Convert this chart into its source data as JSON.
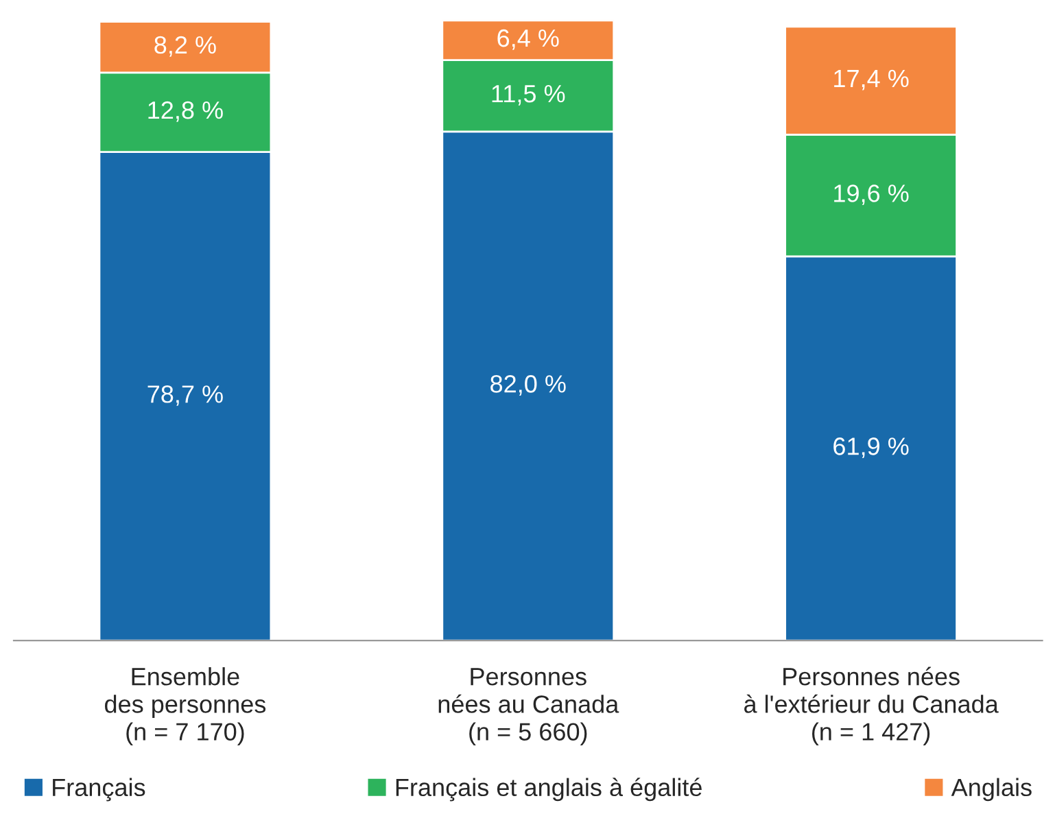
{
  "chart_data": {
    "type": "bar",
    "stacked": true,
    "categories": [
      "Ensemble\ndes personnes\n(n = 7 170)",
      "Personnes\nnées au Canada\n(n = 5 660)",
      "Personnes nées\nà l'extérieur du Canada\n(n = 1 427)"
    ],
    "series": [
      {
        "name": "Français",
        "color": "#186aab",
        "values": [
          78.7,
          82.0,
          61.9
        ],
        "value_labels": [
          "78,7 %",
          "82,0 %",
          "61,9 %"
        ]
      },
      {
        "name": "Français et anglais à égalité",
        "color": "#2db35c",
        "values": [
          12.8,
          11.5,
          19.6
        ],
        "value_labels": [
          "12,8 %",
          "11,5 %",
          "19,6 %"
        ]
      },
      {
        "name": "Anglais",
        "color": "#f4873f",
        "values": [
          8.2,
          6.4,
          17.4
        ],
        "value_labels": [
          "8,2 %",
          "6,4 %",
          "17,4 %"
        ]
      }
    ],
    "legend": "bottom",
    "grid": false,
    "tick_labels": "x"
  }
}
